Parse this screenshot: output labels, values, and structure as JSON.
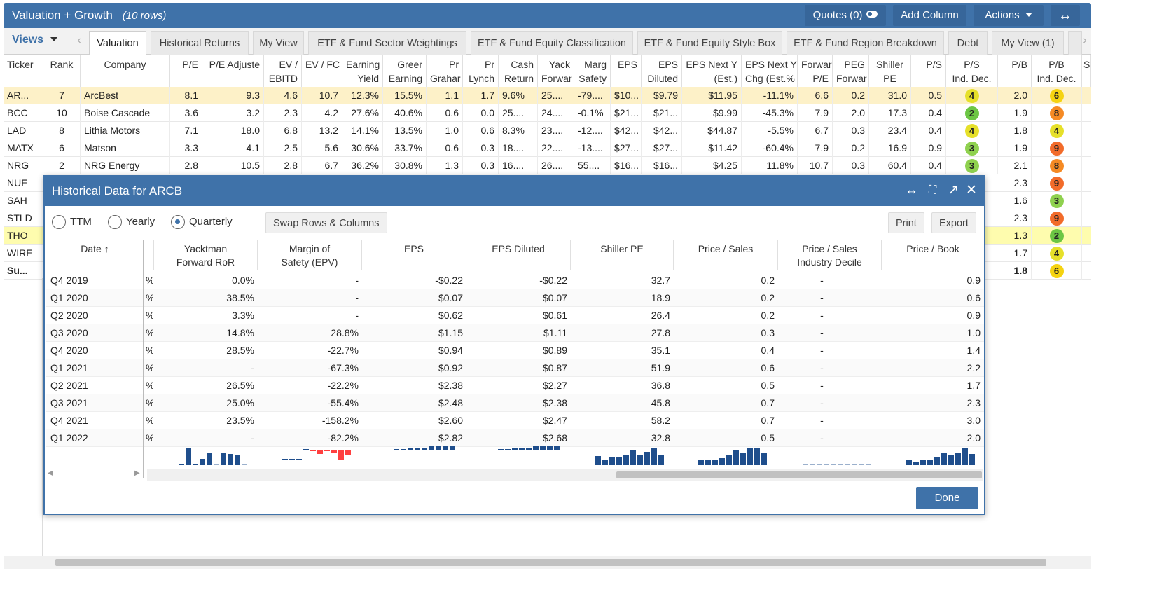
{
  "window": {
    "title": "Valuation + Growth",
    "row_count": "(10 rows)",
    "quotes_label": "Quotes (0)",
    "add_column_label": "Add Column",
    "actions_label": "Actions",
    "expand_icon": "↔"
  },
  "tabs": {
    "views_label": "Views",
    "items": [
      {
        "label": "Valuation"
      },
      {
        "label": "Historical Returns"
      },
      {
        "label": "My View"
      },
      {
        "label": "ETF & Fund Sector Weightings"
      },
      {
        "label": "ETF & Fund Equity Classification"
      },
      {
        "label": "ETF & Fund Equity Style Box"
      },
      {
        "label": "ETF & Fund Region Breakdown"
      },
      {
        "label": "Debt"
      },
      {
        "label": "My View (1)"
      }
    ]
  },
  "grid": {
    "headers": [
      "Ticker",
      "Rank",
      "Company",
      "P/E",
      "P/E Adjuste",
      "EV /",
      "EBITD",
      "EV / FC",
      "Earning",
      "Yield",
      "Greer",
      "Earning",
      "Pr",
      "Grahar",
      "Pr",
      "Lynch",
      "Cash",
      "Return",
      "Yack",
      "Forwar",
      "Marg",
      "Safety",
      "EPS",
      "EPS",
      "Diluted",
      "EPS Next Y",
      "(Est.)",
      "EPS Next Y",
      "Chg (Est.%",
      "Forwar",
      "P/E",
      "PEG",
      "Forwar",
      "Shiller",
      "PE",
      "P/S",
      "P/S",
      "Ind. Dec.",
      "P/B",
      "P/B",
      "Ind. Dec.",
      "Sh"
    ],
    "rows": [
      {
        "ticker": "AR...",
        "rank": "7",
        "company": "ArcBest",
        "pe": "8.1",
        "pe_adj": "9.3",
        "ev_ebitda": "4.6",
        "ev_fcf": "10.7",
        "earn_yield": "12.3%",
        "greer": "15.5%",
        "graham": "1.1",
        "lynch": "1.7",
        "cash_ret": "9.6%",
        "yack": "25....",
        "margin": "-79....",
        "eps": "$10...",
        "eps_dil": "$9.79",
        "eps_next": "$11.95",
        "eps_chg": "-11.1%",
        "fwd_pe": "6.6",
        "peg": "0.2",
        "shiller": "31.0",
        "ps": "0.5",
        "ps_dec": "4",
        "pb": "2.0",
        "pb_dec": "6"
      },
      {
        "ticker": "BCC",
        "rank": "10",
        "company": "Boise Cascade",
        "pe": "3.6",
        "pe_adj": "3.2",
        "ev_ebitda": "2.3",
        "ev_fcf": "4.2",
        "earn_yield": "27.6%",
        "greer": "40.6%",
        "graham": "0.6",
        "lynch": "0.0",
        "cash_ret": "25....",
        "yack": "24....",
        "margin": "-0.1%",
        "eps": "$21...",
        "eps_dil": "$21...",
        "eps_next": "$9.99",
        "eps_chg": "-45.3%",
        "fwd_pe": "7.9",
        "peg": "2.0",
        "shiller": "17.3",
        "ps": "0.4",
        "ps_dec": "2",
        "pb": "1.9",
        "pb_dec": "8"
      },
      {
        "ticker": "LAD",
        "rank": "8",
        "company": "Lithia Motors",
        "pe": "7.1",
        "pe_adj": "18.0",
        "ev_ebitda": "6.8",
        "ev_fcf": "13.2",
        "earn_yield": "14.1%",
        "greer": "13.5%",
        "graham": "1.0",
        "lynch": "0.6",
        "cash_ret": "8.3%",
        "yack": "23....",
        "margin": "-12....",
        "eps": "$42...",
        "eps_dil": "$42...",
        "eps_next": "$44.87",
        "eps_chg": "-5.5%",
        "fwd_pe": "6.7",
        "peg": "0.3",
        "shiller": "23.4",
        "ps": "0.4",
        "ps_dec": "4",
        "pb": "1.8",
        "pb_dec": "4"
      },
      {
        "ticker": "MATX",
        "rank": "6",
        "company": "Matson",
        "pe": "3.3",
        "pe_adj": "4.1",
        "ev_ebitda": "2.5",
        "ev_fcf": "5.6",
        "earn_yield": "30.6%",
        "greer": "33.7%",
        "graham": "0.6",
        "lynch": "0.3",
        "cash_ret": "18....",
        "yack": "22....",
        "margin": "-13....",
        "eps": "$27...",
        "eps_dil": "$27...",
        "eps_next": "$11.42",
        "eps_chg": "-60.4%",
        "fwd_pe": "7.9",
        "peg": "0.2",
        "shiller": "16.9",
        "ps": "0.9",
        "ps_dec": "3",
        "pb": "1.9",
        "pb_dec": "9"
      },
      {
        "ticker": "NRG",
        "rank": "2",
        "company": "NRG Energy",
        "pe": "2.8",
        "pe_adj": "10.5",
        "ev_ebitda": "2.8",
        "ev_fcf": "6.7",
        "earn_yield": "36.2%",
        "greer": "30.8%",
        "graham": "1.3",
        "lynch": "0.3",
        "cash_ret": "16....",
        "yack": "26....",
        "margin": "55....",
        "eps": "$16...",
        "eps_dil": "$16...",
        "eps_next": "$4.25",
        "eps_chg": "11.8%",
        "fwd_pe": "10.7",
        "peg": "0.3",
        "shiller": "60.4",
        "ps": "0.4",
        "ps_dec": "3",
        "pb": "2.1",
        "pb_dec": "8"
      },
      {
        "ticker": "NUE",
        "pb": "2.3",
        "pb_dec": "9"
      },
      {
        "ticker": "SAH",
        "pb": "1.6",
        "pb_dec": "3"
      },
      {
        "ticker": "STLD",
        "pb": "2.3",
        "pb_dec": "9"
      },
      {
        "ticker": "THO",
        "pb": "1.3",
        "pb_dec": "2"
      },
      {
        "ticker": "WIRE",
        "pb": "1.7",
        "pb_dec": "4"
      },
      {
        "ticker": "Su...",
        "pb": "1.8",
        "pb_dec": "6"
      }
    ]
  },
  "badge_colors": {
    "1": "#3cb043",
    "2": "#6cc644",
    "3": "#8fd14f",
    "4": "#e6e02a",
    "5": "#f2d21b",
    "6": "#f5d311",
    "7": "#f7a33a",
    "8": "#f58a24",
    "9": "#f26b2a"
  },
  "dialog": {
    "title": "Historical Data for ARCB",
    "period_options": [
      {
        "label": "TTM",
        "selected": false
      },
      {
        "label": "Yearly",
        "selected": false
      },
      {
        "label": "Quarterly",
        "selected": true
      }
    ],
    "swap_label": "Swap Rows & Columns",
    "print_label": "Print",
    "export_label": "Export",
    "done_label": "Done",
    "columns": {
      "date": "Date",
      "yack": [
        "Yacktman",
        "Forward RoR"
      ],
      "margin": [
        "Margin of",
        "Safety (EPV)"
      ],
      "eps": "EPS",
      "eps_dil": "EPS Diluted",
      "shiller": "Shiller PE",
      "ps": "Price / Sales",
      "ps_dec": [
        "Price / Sales",
        "Industry Decile"
      ],
      "pb": "Price / Book"
    },
    "rows": [
      {
        "date": "Q4 2019",
        "yack": "0.0%",
        "margin": "-",
        "eps": "-$0.22",
        "eps_dil": "-$0.22",
        "shiller": "32.7",
        "ps": "0.2",
        "ps_dec": "-",
        "pb": "0.9"
      },
      {
        "date": "Q1 2020",
        "yack": "38.5%",
        "margin": "-",
        "eps": "$0.07",
        "eps_dil": "$0.07",
        "shiller": "18.9",
        "ps": "0.2",
        "ps_dec": "-",
        "pb": "0.6"
      },
      {
        "date": "Q2 2020",
        "yack": "3.3%",
        "margin": "-",
        "eps": "$0.62",
        "eps_dil": "$0.61",
        "shiller": "26.4",
        "ps": "0.2",
        "ps_dec": "-",
        "pb": "0.9"
      },
      {
        "date": "Q3 2020",
        "yack": "14.8%",
        "margin": "28.8%",
        "eps": "$1.15",
        "eps_dil": "$1.11",
        "shiller": "27.8",
        "ps": "0.3",
        "ps_dec": "-",
        "pb": "1.0"
      },
      {
        "date": "Q4 2020",
        "yack": "28.5%",
        "margin": "-22.7%",
        "eps": "$0.94",
        "eps_dil": "$0.89",
        "shiller": "35.1",
        "ps": "0.4",
        "ps_dec": "-",
        "pb": "1.4"
      },
      {
        "date": "Q1 2021",
        "yack": "-",
        "margin": "-67.3%",
        "eps": "$0.92",
        "eps_dil": "$0.87",
        "shiller": "51.9",
        "ps": "0.6",
        "ps_dec": "-",
        "pb": "2.2"
      },
      {
        "date": "Q2 2021",
        "yack": "26.5%",
        "margin": "-22.2%",
        "eps": "$2.38",
        "eps_dil": "$2.27",
        "shiller": "36.8",
        "ps": "0.5",
        "ps_dec": "-",
        "pb": "1.7"
      },
      {
        "date": "Q3 2021",
        "yack": "25.0%",
        "margin": "-55.4%",
        "eps": "$2.48",
        "eps_dil": "$2.38",
        "shiller": "45.8",
        "ps": "0.7",
        "ps_dec": "-",
        "pb": "2.3"
      },
      {
        "date": "Q4 2021",
        "yack": "23.5%",
        "margin": "-158.2%",
        "eps": "$2.60",
        "eps_dil": "$2.47",
        "shiller": "58.2",
        "ps": "0.7",
        "ps_dec": "-",
        "pb": "3.0"
      },
      {
        "date": "Q1 2022",
        "yack": "-",
        "margin": "-82.2%",
        "eps": "$2.82",
        "eps_dil": "$2.68",
        "shiller": "32.8",
        "ps": "0.5",
        "ps_dec": "-",
        "pb": "2.0"
      }
    ]
  }
}
